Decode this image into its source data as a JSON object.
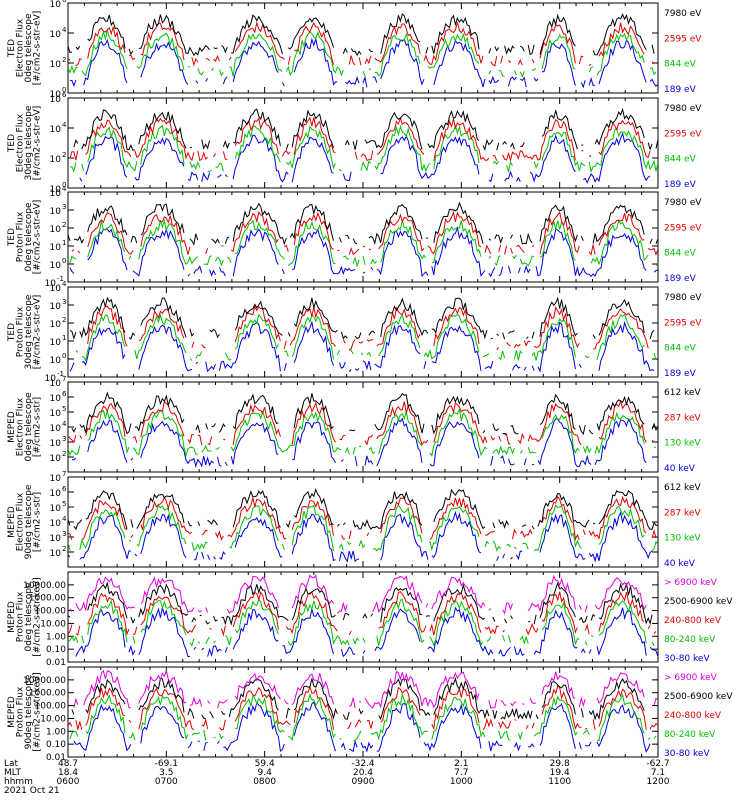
{
  "chart_data": {
    "type": "line",
    "x_ticks": {
      "lat": [
        "48.7",
        "-69.1",
        "59.4",
        "-32.4",
        "2.1",
        "29.8",
        "-62.7"
      ],
      "mlt": [
        "18.4",
        "3.5",
        "9.4",
        "20.4",
        "7.7",
        "19.4",
        "7.1"
      ],
      "hhmm": [
        "0600",
        "0700",
        "0800",
        "0900",
        "1000",
        "1100",
        "1200"
      ]
    },
    "row_labels": [
      "Lat",
      "MLT",
      "hhmm"
    ],
    "date": "2021 Oct 21",
    "time_range": [
      "0600",
      "1200"
    ],
    "panels": [
      {
        "ylabel_lines": [
          "TED",
          "Electron Flux",
          "0deg telescope",
          "[#/cm2-s-str-eV]"
        ],
        "log": true,
        "ylim": [
          1,
          1000000
        ],
        "yticks": [
          {
            "v": 1,
            "t": "10^0"
          },
          {
            "v": 100,
            "t": "10^2"
          },
          {
            "v": 10000,
            "t": "10^4"
          },
          {
            "v": 1000000,
            "t": "10^6"
          }
        ],
        "series": [
          {
            "name": "7980 eV",
            "color": "#000000"
          },
          {
            "name": "2595 eV",
            "color": "#e00000"
          },
          {
            "name": "844 eV",
            "color": "#00c000"
          },
          {
            "name": "189 eV",
            "color": "#0000e0"
          }
        ]
      },
      {
        "ylabel_lines": [
          "TED",
          "Electron Flux",
          "30deg telescope",
          "[#/cm2-s-str-eV]"
        ],
        "log": true,
        "ylim": [
          1,
          1000000
        ],
        "yticks": [
          {
            "v": 1,
            "t": "10^0"
          },
          {
            "v": 100,
            "t": "10^2"
          },
          {
            "v": 10000,
            "t": "10^4"
          },
          {
            "v": 1000000,
            "t": "10^6"
          }
        ],
        "series": [
          {
            "name": "7980 eV",
            "color": "#000000"
          },
          {
            "name": "2595 eV",
            "color": "#e00000"
          },
          {
            "name": "844 eV",
            "color": "#00c000"
          },
          {
            "name": "189 eV",
            "color": "#0000e0"
          }
        ]
      },
      {
        "ylabel_lines": [
          "TED",
          "Proton Flux",
          "0deg telescope",
          "[#/cm2-s-str-eV]"
        ],
        "log": true,
        "ylim": [
          0.1,
          10000
        ],
        "yticks": [
          {
            "v": 0.1,
            "t": "10^-1"
          },
          {
            "v": 1,
            "t": "10^0"
          },
          {
            "v": 10,
            "t": "10^1"
          },
          {
            "v": 100,
            "t": "10^2"
          },
          {
            "v": 1000,
            "t": "10^3"
          },
          {
            "v": 10000,
            "t": "10^4"
          }
        ],
        "series": [
          {
            "name": "7980 eV",
            "color": "#000000"
          },
          {
            "name": "2595 eV",
            "color": "#e00000"
          },
          {
            "name": "844 eV",
            "color": "#00c000"
          },
          {
            "name": "189 eV",
            "color": "#0000e0"
          }
        ]
      },
      {
        "ylabel_lines": [
          "TED",
          "Proton Flux",
          "30deg telescope",
          "[#/cm2-s-str-eV]"
        ],
        "log": true,
        "ylim": [
          0.1,
          10000
        ],
        "yticks": [
          {
            "v": 0.1,
            "t": "10^-1"
          },
          {
            "v": 1,
            "t": "10^0"
          },
          {
            "v": 10,
            "t": "10^1"
          },
          {
            "v": 100,
            "t": "10^2"
          },
          {
            "v": 1000,
            "t": "10^3"
          },
          {
            "v": 10000,
            "t": "10^4"
          }
        ],
        "series": [
          {
            "name": "7980 eV",
            "color": "#000000"
          },
          {
            "name": "2595 eV",
            "color": "#e00000"
          },
          {
            "name": "844 eV",
            "color": "#00c000"
          },
          {
            "name": "189 eV",
            "color": "#0000e0"
          }
        ]
      },
      {
        "ylabel_lines": [
          "MEPED",
          "Electron Flux",
          "0deg telescope",
          "[#/cm2-s-str]"
        ],
        "log": true,
        "ylim": [
          10,
          10000000
        ],
        "yticks": [
          {
            "v": 100,
            "t": "10^2"
          },
          {
            "v": 1000,
            "t": "10^3"
          },
          {
            "v": 10000,
            "t": "10^4"
          },
          {
            "v": 100000,
            "t": "10^5"
          },
          {
            "v": 1000000,
            "t": "10^6"
          },
          {
            "v": 10000000,
            "t": "10^7"
          }
        ],
        "series": [
          {
            "name": "612 keV",
            "color": "#000000"
          },
          {
            "name": "287 keV",
            "color": "#e00000"
          },
          {
            "name": "130 keV",
            "color": "#00c000"
          },
          {
            "name": "40 keV",
            "color": "#0000e0"
          }
        ]
      },
      {
        "ylabel_lines": [
          "MEPED",
          "Electron Flux",
          "90deg telescope",
          "[#/cm2-s-str]"
        ],
        "log": true,
        "ylim": [
          10,
          10000000
        ],
        "yticks": [
          {
            "v": 100,
            "t": "10^2"
          },
          {
            "v": 1000,
            "t": "10^3"
          },
          {
            "v": 10000,
            "t": "10^4"
          },
          {
            "v": 100000,
            "t": "10^5"
          },
          {
            "v": 1000000,
            "t": "10^6"
          },
          {
            "v": 10000000,
            "t": "10^7"
          }
        ],
        "series": [
          {
            "name": "612 keV",
            "color": "#000000"
          },
          {
            "name": "287 keV",
            "color": "#e00000"
          },
          {
            "name": "130 keV",
            "color": "#00c000"
          },
          {
            "name": "40 keV",
            "color": "#0000e0"
          }
        ]
      },
      {
        "ylabel_lines": [
          "MEPED",
          "Proton Flux",
          "0deg telescope",
          "[#/cm2-s-str-keV]"
        ],
        "log": true,
        "ylim": [
          0.01,
          100000
        ],
        "yticks": [
          {
            "v": 0.01,
            "t": "0.01"
          },
          {
            "v": 0.1,
            "t": "0.10"
          },
          {
            "v": 1,
            "t": "1.00"
          },
          {
            "v": 10,
            "t": "10.00"
          },
          {
            "v": 100,
            "t": "100.00"
          },
          {
            "v": 1000,
            "t": "1000.00"
          },
          {
            "v": 10000,
            "t": "10000.00"
          }
        ],
        "series": [
          {
            "name": "> 6900 keV",
            "color": "#e000e0"
          },
          {
            "name": "2500-6900 keV",
            "color": "#000000"
          },
          {
            "name": "240-800 keV",
            "color": "#e00000"
          },
          {
            "name": "80-240 keV",
            "color": "#00c000"
          },
          {
            "name": "30-80 keV",
            "color": "#0000e0"
          }
        ]
      },
      {
        "ylabel_lines": [
          "MEPED",
          "Proton Flux",
          "90deg telescope",
          "[#/cm2-s-str-keV]"
        ],
        "log": true,
        "ylim": [
          0.01,
          100000
        ],
        "yticks": [
          {
            "v": 0.01,
            "t": "0.01"
          },
          {
            "v": 0.1,
            "t": "0.10"
          },
          {
            "v": 1,
            "t": "1.00"
          },
          {
            "v": 10,
            "t": "10.00"
          },
          {
            "v": 100,
            "t": "100.00"
          },
          {
            "v": 1000,
            "t": "1000.00"
          },
          {
            "v": 10000,
            "t": "10000.00"
          }
        ],
        "series": [
          {
            "name": "> 6900 keV",
            "color": "#e000e0"
          },
          {
            "name": "2500-6900 keV",
            "color": "#000000"
          },
          {
            "name": "240-800 keV",
            "color": "#e00000"
          },
          {
            "name": "80-240 keV",
            "color": "#00c000"
          },
          {
            "name": "30-80 keV",
            "color": "#0000e0"
          }
        ]
      }
    ]
  }
}
